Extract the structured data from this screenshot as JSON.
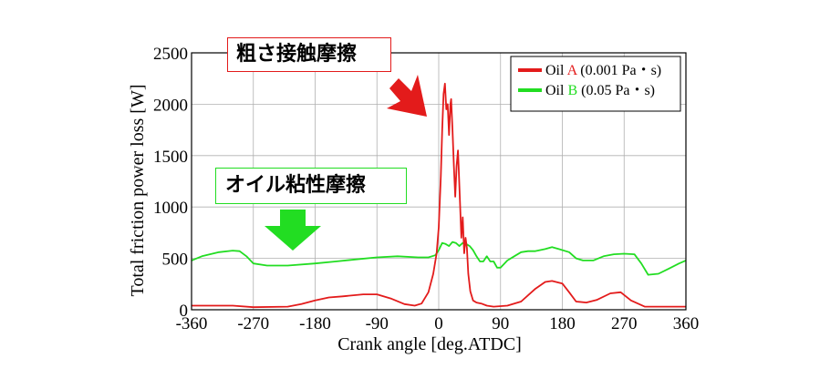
{
  "chart_data": {
    "type": "line",
    "title": "",
    "xlabel": "Crank angle [deg.ATDC]",
    "ylabel": "Total friction power loss [W]",
    "xlim": [
      -360,
      360
    ],
    "ylim": [
      0,
      2500
    ],
    "xticks": [
      -360,
      -270,
      -180,
      -90,
      0,
      90,
      180,
      270,
      360
    ],
    "yticks": [
      0,
      500,
      1000,
      1500,
      2000,
      2500
    ],
    "grid": true,
    "legend_position": "top-right",
    "legend": [
      {
        "prefix": "Oil ",
        "letter": "A",
        "suffix": " (0.001 Pa・s)",
        "color": "#e31b1b"
      },
      {
        "prefix": "Oil ",
        "letter": "B",
        "suffix": " (0.05 Pa・s)",
        "color": "#22dd22"
      }
    ],
    "series": [
      {
        "color": "#e31b1b",
        "points": [
          [
            -360,
            40
          ],
          [
            -300,
            40
          ],
          [
            -270,
            25
          ],
          [
            -220,
            30
          ],
          [
            -200,
            55
          ],
          [
            -180,
            90
          ],
          [
            -160,
            120
          ],
          [
            -140,
            130
          ],
          [
            -110,
            150
          ],
          [
            -90,
            150
          ],
          [
            -70,
            110
          ],
          [
            -50,
            55
          ],
          [
            -35,
            40
          ],
          [
            -25,
            60
          ],
          [
            -15,
            170
          ],
          [
            -8,
            350
          ],
          [
            -3,
            550
          ],
          [
            0,
            800
          ],
          [
            3,
            1300
          ],
          [
            5,
            1750
          ],
          [
            7,
            2100
          ],
          [
            9,
            2200
          ],
          [
            11,
            1950
          ],
          [
            13,
            2000
          ],
          [
            15,
            1700
          ],
          [
            17,
            2000
          ],
          [
            18,
            2050
          ],
          [
            20,
            1750
          ],
          [
            22,
            1400
          ],
          [
            24,
            1100
          ],
          [
            26,
            1400
          ],
          [
            28,
            1550
          ],
          [
            29,
            1400
          ],
          [
            31,
            1050
          ],
          [
            33,
            700
          ],
          [
            35,
            900
          ],
          [
            37,
            550
          ],
          [
            39,
            700
          ],
          [
            41,
            600
          ],
          [
            43,
            350
          ],
          [
            46,
            180
          ],
          [
            50,
            90
          ],
          [
            55,
            70
          ],
          [
            62,
            60
          ],
          [
            70,
            40
          ],
          [
            80,
            30
          ],
          [
            100,
            40
          ],
          [
            120,
            80
          ],
          [
            140,
            200
          ],
          [
            155,
            270
          ],
          [
            165,
            280
          ],
          [
            180,
            255
          ],
          [
            190,
            170
          ],
          [
            200,
            80
          ],
          [
            215,
            70
          ],
          [
            230,
            95
          ],
          [
            250,
            160
          ],
          [
            265,
            170
          ],
          [
            280,
            90
          ],
          [
            300,
            30
          ],
          [
            330,
            30
          ],
          [
            360,
            30
          ]
        ]
      },
      {
        "color": "#22dd22",
        "points": [
          [
            -360,
            480
          ],
          [
            -345,
            520
          ],
          [
            -320,
            560
          ],
          [
            -300,
            575
          ],
          [
            -290,
            570
          ],
          [
            -280,
            520
          ],
          [
            -270,
            450
          ],
          [
            -250,
            430
          ],
          [
            -220,
            430
          ],
          [
            -180,
            450
          ],
          [
            -150,
            470
          ],
          [
            -120,
            490
          ],
          [
            -90,
            510
          ],
          [
            -60,
            520
          ],
          [
            -30,
            510
          ],
          [
            -15,
            510
          ],
          [
            -5,
            530
          ],
          [
            0,
            580
          ],
          [
            5,
            650
          ],
          [
            10,
            640
          ],
          [
            15,
            620
          ],
          [
            20,
            660
          ],
          [
            25,
            650
          ],
          [
            30,
            620
          ],
          [
            35,
            650
          ],
          [
            40,
            640
          ],
          [
            45,
            620
          ],
          [
            50,
            580
          ],
          [
            55,
            520
          ],
          [
            60,
            470
          ],
          [
            65,
            470
          ],
          [
            70,
            520
          ],
          [
            75,
            470
          ],
          [
            80,
            470
          ],
          [
            85,
            410
          ],
          [
            90,
            410
          ],
          [
            100,
            480
          ],
          [
            110,
            520
          ],
          [
            120,
            560
          ],
          [
            130,
            570
          ],
          [
            140,
            570
          ],
          [
            155,
            590
          ],
          [
            165,
            610
          ],
          [
            175,
            590
          ],
          [
            190,
            560
          ],
          [
            200,
            500
          ],
          [
            210,
            480
          ],
          [
            225,
            480
          ],
          [
            240,
            520
          ],
          [
            255,
            540
          ],
          [
            270,
            545
          ],
          [
            285,
            540
          ],
          [
            295,
            450
          ],
          [
            305,
            340
          ],
          [
            320,
            350
          ],
          [
            335,
            400
          ],
          [
            350,
            450
          ],
          [
            360,
            480
          ]
        ]
      }
    ]
  },
  "annotations": {
    "contact_friction": "粗さ接触摩擦",
    "viscous_friction": "オイル粘性摩擦"
  },
  "colors": {
    "red": "#e31b1b",
    "green": "#22dd22",
    "grid": "#b0b0b0"
  }
}
